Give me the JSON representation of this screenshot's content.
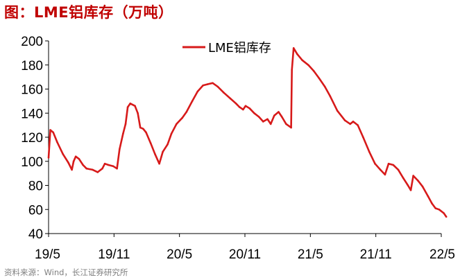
{
  "figure": {
    "title": "图：LME铝库存（万吨）",
    "source": "资料来源：Wind，长江证券研究所"
  },
  "colors": {
    "line": "#d71a1a",
    "axis": "#000000",
    "title": "#c00000",
    "source": "#7f7f7f"
  },
  "chart_data": {
    "type": "line",
    "title": "",
    "xlabel": "",
    "ylabel": "",
    "ylim": [
      40,
      200
    ],
    "yticks": [
      40,
      60,
      80,
      100,
      120,
      140,
      160,
      180,
      200
    ],
    "xticks": [
      "19/5",
      "19/11",
      "20/5",
      "20/11",
      "21/5",
      "21/11",
      "22/5"
    ],
    "xlim": [
      "2019-05",
      "2022-05"
    ],
    "grid": false,
    "legend_position": "top-center",
    "series": [
      {
        "name": "LME铝库存",
        "points": [
          [
            "2019-05-01",
            103
          ],
          [
            "2019-05-06",
            126
          ],
          [
            "2019-05-14",
            124
          ],
          [
            "2019-05-25",
            116
          ],
          [
            "2019-06-10",
            106
          ],
          [
            "2019-06-25",
            99
          ],
          [
            "2019-07-05",
            93
          ],
          [
            "2019-07-10",
            100
          ],
          [
            "2019-07-16",
            104
          ],
          [
            "2019-07-25",
            102
          ],
          [
            "2019-08-05",
            97
          ],
          [
            "2019-08-15",
            94
          ],
          [
            "2019-09-01",
            93
          ],
          [
            "2019-09-15",
            91
          ],
          [
            "2019-09-28",
            94
          ],
          [
            "2019-10-05",
            98
          ],
          [
            "2019-10-15",
            97
          ],
          [
            "2019-10-28",
            96
          ],
          [
            "2019-11-08",
            94
          ],
          [
            "2019-11-15",
            110
          ],
          [
            "2019-11-25",
            123
          ],
          [
            "2019-12-02",
            131
          ],
          [
            "2019-12-08",
            145
          ],
          [
            "2019-12-15",
            148
          ],
          [
            "2019-12-28",
            146
          ],
          [
            "2020-01-05",
            140
          ],
          [
            "2020-01-12",
            128
          ],
          [
            "2020-01-20",
            127
          ],
          [
            "2020-01-28",
            124
          ],
          [
            "2020-02-10",
            115
          ],
          [
            "2020-02-22",
            106
          ],
          [
            "2020-03-05",
            98
          ],
          [
            "2020-03-15",
            108
          ],
          [
            "2020-03-28",
            114
          ],
          [
            "2020-04-08",
            123
          ],
          [
            "2020-04-22",
            131
          ],
          [
            "2020-05-08",
            136
          ],
          [
            "2020-05-20",
            141
          ],
          [
            "2020-06-05",
            150
          ],
          [
            "2020-06-20",
            158
          ],
          [
            "2020-07-05",
            163
          ],
          [
            "2020-07-18",
            164
          ],
          [
            "2020-08-01",
            165
          ],
          [
            "2020-08-15",
            162
          ],
          [
            "2020-09-01",
            157
          ],
          [
            "2020-09-20",
            152
          ],
          [
            "2020-10-05",
            148
          ],
          [
            "2020-10-15",
            145
          ],
          [
            "2020-10-25",
            143
          ],
          [
            "2020-11-01",
            146
          ],
          [
            "2020-11-12",
            144
          ],
          [
            "2020-11-25",
            140
          ],
          [
            "2020-12-08",
            137
          ],
          [
            "2020-12-20",
            133
          ],
          [
            "2021-01-01",
            135
          ],
          [
            "2021-01-10",
            131
          ],
          [
            "2021-01-20",
            138
          ],
          [
            "2021-02-01",
            141
          ],
          [
            "2021-02-10",
            137
          ],
          [
            "2021-02-22",
            131
          ],
          [
            "2021-03-08",
            128
          ],
          [
            "2021-03-10",
            176
          ],
          [
            "2021-03-15",
            194
          ],
          [
            "2021-03-25",
            189
          ],
          [
            "2021-04-08",
            184
          ],
          [
            "2021-04-25",
            180
          ],
          [
            "2021-05-10",
            175
          ],
          [
            "2021-05-25",
            169
          ],
          [
            "2021-06-10",
            162
          ],
          [
            "2021-06-25",
            154
          ],
          [
            "2021-07-15",
            142
          ],
          [
            "2021-08-05",
            134
          ],
          [
            "2021-08-20",
            131
          ],
          [
            "2021-08-28",
            133
          ],
          [
            "2021-09-10",
            130
          ],
          [
            "2021-09-25",
            120
          ],
          [
            "2021-10-12",
            108
          ],
          [
            "2021-10-28",
            98
          ],
          [
            "2021-11-12",
            93
          ],
          [
            "2021-11-25",
            89
          ],
          [
            "2021-12-05",
            98
          ],
          [
            "2021-12-18",
            97
          ],
          [
            "2022-01-01",
            93
          ],
          [
            "2022-01-15",
            86
          ],
          [
            "2022-01-28",
            80
          ],
          [
            "2022-02-05",
            76
          ],
          [
            "2022-02-12",
            88
          ],
          [
            "2022-02-25",
            84
          ],
          [
            "2022-03-10",
            79
          ],
          [
            "2022-03-25",
            71
          ],
          [
            "2022-04-05",
            65
          ],
          [
            "2022-04-15",
            61
          ],
          [
            "2022-04-25",
            60
          ],
          [
            "2022-05-08",
            57
          ],
          [
            "2022-05-15",
            54
          ]
        ]
      }
    ]
  }
}
